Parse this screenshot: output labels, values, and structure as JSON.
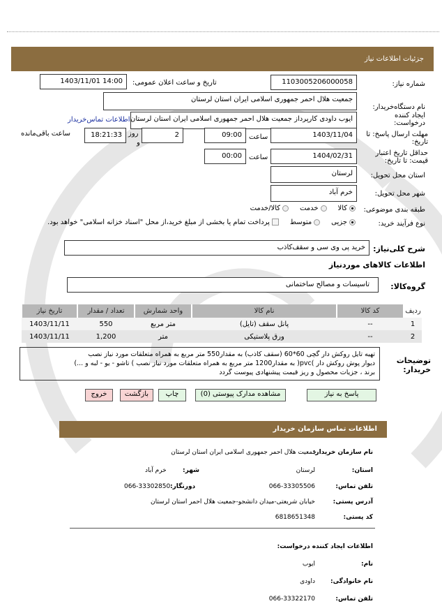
{
  "header": {
    "title": "جزئیات اطلاعات نیاز"
  },
  "form": {
    "need_number_label": "شماره نیاز:",
    "need_number": "1103005206000058",
    "announce_label": "تاریخ و ساعت اعلان عمومی:",
    "announce_value": "1403/11/01 14:00",
    "buyer_org_label": "نام دستگاه‌خریدار:",
    "buyer_org": "جمعیت هلال احمر جمهوری اسلامی ایران استان لرستان",
    "creator_label": "ایجاد کننده درخواست:",
    "creator": "ایوب داودی کارپرداز جمعیت هلال احمر جمهوری اسلامی ایران استان لرستان",
    "contact_link": "اطلاعات تماس‌خریدار",
    "deadline_label": "مهلت ارسال پاسخ: تا تاریخ:",
    "deadline_date": "1403/11/04",
    "time_label": "ساعت",
    "deadline_time": "09:00",
    "days": "2",
    "days_label": "روز",
    "and_label": "و",
    "remaining": "18:21:33",
    "remaining_label": "ساعت باقی‌مانده",
    "validity_label": "حداقل تاریخ اعتبار قیمت: تا تاریخ:",
    "validity_date": "1404/02/31",
    "validity_time": "00:00",
    "province_label": "استان محل تحویل:",
    "province": "لرستان",
    "city_label": "شهر محل تحویل:",
    "city": "خرم آباد",
    "category_label": "طبقه بندی موضوعی:",
    "category_options": [
      "کالا",
      "خدمت",
      "کالا/خدمت"
    ],
    "category_selected": "کالا",
    "process_label": "نوع فرآیند خرید:",
    "process_options": [
      "جزیی",
      "متوسط"
    ],
    "process_selected": "جزیی",
    "payment_note": "پرداخت تمام یا بخشی از مبلغ خرید،از محل \"اسناد خزانه اسلامی\" خواهد بود.",
    "summary_label": "شرح کلی‌نیاز:",
    "summary": "خرید پی وی سی و سقف‌کاذب",
    "goods_heading": "اطلاعات کالاهای موردنیاز",
    "group_label": "گروه‌کالا:",
    "group": "تاسیسات و مصالح ساختمانی"
  },
  "table": {
    "headers": [
      "ردیف",
      "کد کالا",
      "نام کالا",
      "واحد شمارش",
      "تعداد / مقدار",
      "تاریخ نیاز"
    ],
    "rows": [
      [
        "1",
        "--",
        "پانل سقف (تایل)",
        "متر مربع",
        "550",
        "1403/11/11"
      ],
      [
        "2",
        "--",
        "ورق پلاستیکی",
        "متر",
        "1,200",
        "1403/11/11"
      ]
    ]
  },
  "description": {
    "label": "توضیحات خریدار:",
    "lines": [
      "تهیه تایل روکش دار گچی 60*60 (سقف کاذب) به مقدار550 متر مربع به همراه متعلقات مورد نیاز نصب",
      "دیوار پوش روکش دار )pvc( به مقدار1200 متر مربع به همراه متعلقات مورد نیاز نصب ) تاشو - یو - لبه و ...)",
      "برند ، جزیات محصول و ریز قیمت  پیشنهادی پیوست گردد"
    ]
  },
  "buttons": {
    "reply": "پاسخ به نیاز",
    "attachments": "مشاهده مدارک پیوستی (0)",
    "print": "چاپ",
    "back": "بازگشت",
    "exit": "خروج"
  },
  "contact": {
    "title": "اطلاعات تماس سازمان خریدار",
    "org_label": "نام سازمان خریدار:",
    "org": "جمعیت هلال احمر جمهوری اسلامی ایران استان لرستان",
    "province_label": "استان:",
    "province": "لرستان",
    "city_label": "شهر:",
    "city": "خرم آباد",
    "phone_label": "تلفن تماس:",
    "phone": "066-33305506",
    "fax_label": "دورنگار:",
    "fax": "066-33302850",
    "address_label": "آدرس پستی:",
    "address": "خیابان شریعتی-میدان دانشجو-جمعیت هلال احمر استان لرستان",
    "postal_label": "کد پستی:",
    "postal": "6818651348",
    "creator_heading": "اطلاعات ایجاد کننده درخواست:",
    "name_label": "نام:",
    "name": "ایوب",
    "family_label": "نام خانوادگی:",
    "family": "داودی",
    "creator_phone_label": "تلفن تماس:",
    "creator_phone": "066-33322170"
  },
  "colors": {
    "header_bar": "#8b6d40",
    "green_button": "#e3f6e3",
    "red_button": "#f8d4d4"
  }
}
